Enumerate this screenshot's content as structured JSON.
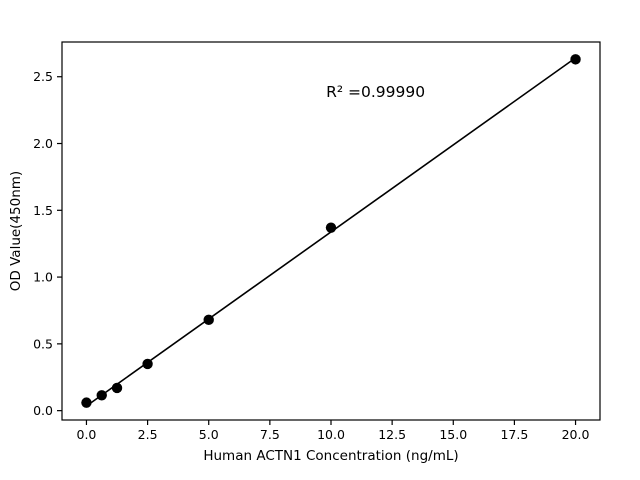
{
  "chart": {
    "annotation_label": "R² =0.99990"
  },
  "chart_data": {
    "type": "scatter",
    "title": "",
    "xlabel": "Human ACTN1 Concentration (ng/mL)",
    "ylabel": "OD Value(450nm)",
    "x": [
      0,
      0.625,
      1.25,
      2.5,
      5,
      10,
      20
    ],
    "y": [
      0.06,
      0.115,
      0.17,
      0.35,
      0.68,
      1.37,
      2.63
    ],
    "fit_line": true,
    "xlim": [
      -1,
      21
    ],
    "ylim": [
      -0.07,
      2.76
    ],
    "xticks": [
      0.0,
      2.5,
      5.0,
      7.5,
      10.0,
      12.5,
      15.0,
      17.5,
      20.0
    ],
    "xtick_labels": [
      "0.0",
      "2.5",
      "5.0",
      "7.5",
      "10.0",
      "12.5",
      "15.0",
      "17.5",
      "20.0"
    ],
    "yticks": [
      0.0,
      0.5,
      1.0,
      1.5,
      2.0,
      2.5
    ],
    "ytick_labels": [
      "0.0",
      "0.5",
      "1.0",
      "1.5",
      "2.0",
      "2.5"
    ],
    "annotation": {
      "text": "R² =0.99990",
      "x": 9.8,
      "y": 2.35
    },
    "grid": false,
    "legend": null,
    "point_color": "#000000",
    "line_color": "#000000",
    "frame_color": "#000000"
  }
}
